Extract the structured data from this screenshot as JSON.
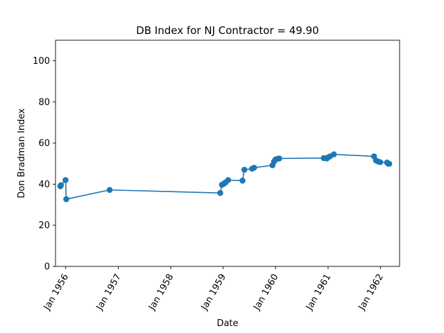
{
  "chart_data": {
    "type": "line",
    "title": "DB Index for NJ Contractor = 49.90",
    "xlabel": "Date",
    "ylabel": "Don Bradman Index",
    "ylim": [
      0,
      110
    ],
    "xlim": [
      "1955-10-22",
      "1962-05-14"
    ],
    "y_ticks": [
      0,
      20,
      40,
      60,
      80,
      100
    ],
    "x_ticks": [
      {
        "date": "1956-01-01",
        "label": "Jan 1956"
      },
      {
        "date": "1957-01-01",
        "label": "Jan 1957"
      },
      {
        "date": "1958-01-01",
        "label": "Jan 1958"
      },
      {
        "date": "1959-01-01",
        "label": "Jan 1959"
      },
      {
        "date": "1960-01-01",
        "label": "Jan 1960"
      },
      {
        "date": "1961-01-01",
        "label": "Jan 1961"
      },
      {
        "date": "1962-01-01",
        "label": "Jan 1962"
      }
    ],
    "grid": false,
    "line_color": "#1f77b4",
    "series": [
      {
        "points": [
          {
            "x": "1955-11-25",
            "y": 39.0
          },
          {
            "x": "1955-11-29",
            "y": 39.5
          },
          {
            "x": "1955-12-31",
            "y": 42.0
          },
          {
            "x": "1956-01-05",
            "y": 32.7
          },
          {
            "x": "1956-11-02",
            "y": 37.2
          },
          {
            "x": "1958-12-12",
            "y": 35.7
          },
          {
            "x": "1958-12-24",
            "y": 39.7
          },
          {
            "x": "1959-01-06",
            "y": 40.2
          },
          {
            "x": "1959-01-17",
            "y": 40.8
          },
          {
            "x": "1959-02-05",
            "y": 42.0
          },
          {
            "x": "1959-05-16",
            "y": 41.7
          },
          {
            "x": "1959-05-29",
            "y": 47.0
          },
          {
            "x": "1959-07-22",
            "y": 47.5
          },
          {
            "x": "1959-08-05",
            "y": 48.0
          },
          {
            "x": "1959-12-11",
            "y": 49.2
          },
          {
            "x": "1959-12-22",
            "y": 51.0
          },
          {
            "x": "1960-01-01",
            "y": 52.0
          },
          {
            "x": "1960-01-13",
            "y": 52.3
          },
          {
            "x": "1960-01-27",
            "y": 52.5
          },
          {
            "x": "1960-12-02",
            "y": 52.7
          },
          {
            "x": "1960-12-23",
            "y": 52.5
          },
          {
            "x": "1960-12-31",
            "y": 53.0
          },
          {
            "x": "1961-01-14",
            "y": 53.5
          },
          {
            "x": "1961-02-10",
            "y": 54.5
          },
          {
            "x": "1961-11-17",
            "y": 53.5
          },
          {
            "x": "1961-12-01",
            "y": 51.5
          },
          {
            "x": "1961-12-15",
            "y": 51.0
          },
          {
            "x": "1961-12-30",
            "y": 50.7
          },
          {
            "x": "1962-02-16",
            "y": 50.5
          },
          {
            "x": "1962-02-23",
            "y": 50.0
          },
          {
            "x": "1962-03-03",
            "y": 49.9
          }
        ]
      }
    ]
  }
}
